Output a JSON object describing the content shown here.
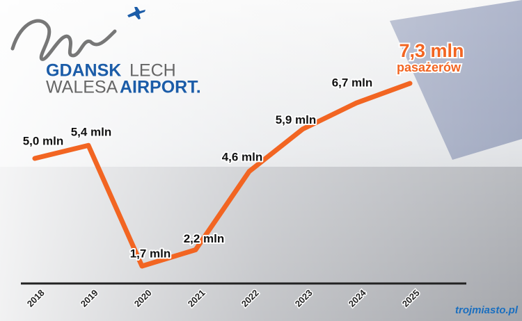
{
  "chart_data": {
    "type": "line",
    "categories": [
      "2018",
      "2019",
      "2020",
      "2021",
      "2022",
      "2023",
      "2024",
      "2025"
    ],
    "values": [
      5.0,
      5.4,
      1.7,
      2.2,
      4.6,
      5.9,
      6.7,
      7.3
    ],
    "value_labels": [
      "5,0 mln",
      "5,4 mln",
      "1,7 mln",
      "2,2 mln",
      "4,6 mln",
      "5,9 mln",
      "6,7 mln",
      "7,3 mln"
    ],
    "annotation": "pasażerów",
    "color": "#f26522"
  },
  "logo": {
    "gdansk": "GDANSK",
    "lech": "LECH",
    "walesa": "WALESA",
    "airport": "AIRPORT."
  },
  "watermark": "trojmiasto.pl"
}
